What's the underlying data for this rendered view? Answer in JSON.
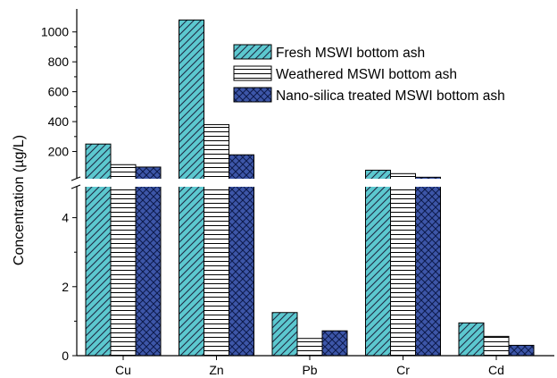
{
  "chart_data": {
    "type": "bar",
    "title": "",
    "xlabel": "",
    "ylabel": "Concentration (µg/L)",
    "categories": [
      "Cu",
      "Zn",
      "Pb",
      "Cr",
      "Cd"
    ],
    "series": [
      {
        "name": "Fresh MSWI bottom ash",
        "values": [
          250,
          1080,
          1.25,
          75,
          0.95
        ],
        "color": "#5cc8cf",
        "pattern": "diagonal-hatch"
      },
      {
        "name": "Weathered MSWI bottom ash",
        "values": [
          112,
          380,
          0.5,
          52,
          0.56
        ],
        "color": "#ffffff",
        "pattern": "horizontal-lines"
      },
      {
        "name": "Nano-silica treated MSWI bottom ash",
        "values": [
          96,
          178,
          0.72,
          28,
          0.3
        ],
        "color": "#3d56a8",
        "pattern": "cross-hatch"
      }
    ],
    "axis_break": true,
    "ylim_lower": [
      0,
      5
    ],
    "ylim_upper": [
      0,
      1100
    ],
    "yticks_lower": [
      "0",
      "2",
      "4"
    ],
    "yticks_upper": [
      "200",
      "400",
      "600",
      "800",
      "1000"
    ],
    "legend": "top-right",
    "grid": false
  }
}
